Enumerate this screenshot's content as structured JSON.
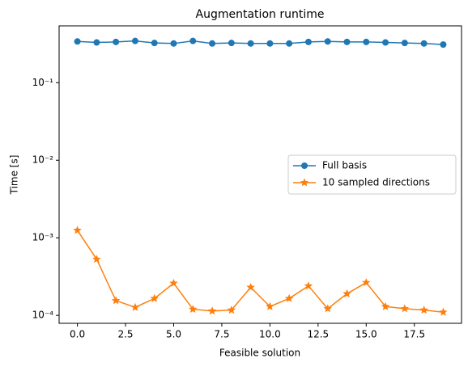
{
  "chart_data": {
    "type": "line",
    "title": "Augmentation runtime",
    "x_label": "Feasible solution",
    "y_label": "Time [s]",
    "x": [
      0,
      1,
      2,
      3,
      4,
      5,
      6,
      7,
      8,
      9,
      10,
      11,
      12,
      13,
      14,
      15,
      16,
      17,
      18,
      19
    ],
    "series": [
      {
        "name": "Full basis",
        "color": "#1f77b4",
        "marker": "circle",
        "values": [
          0.34,
          0.33,
          0.335,
          0.345,
          0.325,
          0.32,
          0.345,
          0.32,
          0.325,
          0.32,
          0.32,
          0.32,
          0.335,
          0.34,
          0.335,
          0.335,
          0.33,
          0.325,
          0.32,
          0.31
        ]
      },
      {
        "name": "10 sampled directions",
        "color": "#ff7f0e",
        "marker": "star",
        "values": [
          0.00125,
          0.00053,
          0.000155,
          0.000127,
          0.000165,
          0.00026,
          0.00012,
          0.000114,
          0.000117,
          0.00023,
          0.00013,
          0.000165,
          0.00024,
          0.000122,
          0.00019,
          0.000265,
          0.00013,
          0.000122,
          0.000117,
          0.00011
        ]
      }
    ],
    "xlim": [
      -0.95,
      19.95
    ],
    "xticks": [
      {
        "value": 0,
        "label": "0.0"
      },
      {
        "value": 2.5,
        "label": "2.5"
      },
      {
        "value": 5,
        "label": "5.0"
      },
      {
        "value": 7.5,
        "label": "7.5"
      },
      {
        "value": 10,
        "label": "10.0"
      },
      {
        "value": 12.5,
        "label": "12.5"
      },
      {
        "value": 15,
        "label": "15.0"
      },
      {
        "value": 17.5,
        "label": "17.5"
      }
    ],
    "ylim": [
      7.9e-05,
      0.54
    ],
    "yticks": [
      {
        "value": 0.0001,
        "label": "10⁻⁴"
      },
      {
        "value": 0.001,
        "label": "10⁻³"
      },
      {
        "value": 0.01,
        "label": "10⁻²"
      },
      {
        "value": 0.1,
        "label": "10⁻¹"
      }
    ],
    "y_scale": "log",
    "legend": "center right"
  }
}
